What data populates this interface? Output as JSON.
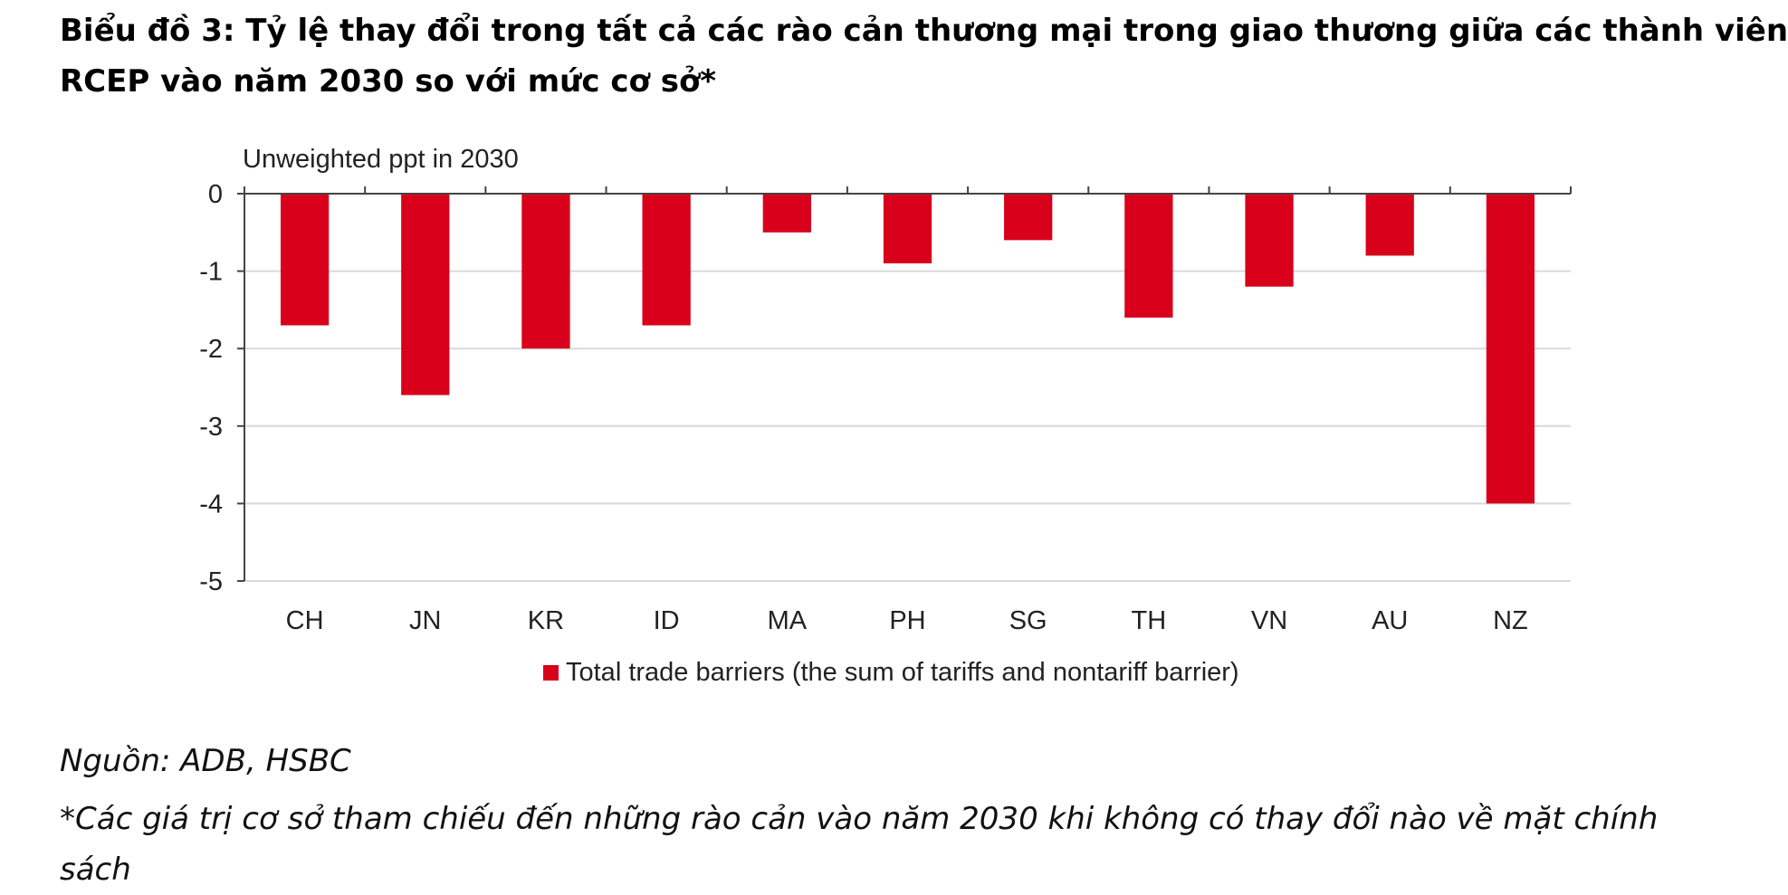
{
  "title_lines": [
    "Biểu đồ 3: Tỷ lệ thay đổi trong tất cả các rào cản thương mại trong giao thương giữa các thành viên",
    "RCEP vào năm 2030 so với mức cơ sở*"
  ],
  "source": "Nguồn: ADB, HSBC",
  "footnote_lines": [
    "*Các giá trị cơ sở tham chiếu đến những rào cản vào năm 2030 khi không có thay đổi nào về mặt chính",
    "sách"
  ],
  "colors": {
    "bar": "#d9001b",
    "grid": "#d9d9d9",
    "axis": "#444444"
  },
  "chart_data": {
    "type": "bar",
    "ylabel": "Unweighted ppt in 2030",
    "xlabel": "",
    "ylim": [
      -5,
      0
    ],
    "yticks": [
      0,
      -1,
      -2,
      -3,
      -4,
      -5
    ],
    "grid": true,
    "legend_position": "bottom",
    "categories": [
      "CH",
      "JN",
      "KR",
      "ID",
      "MA",
      "PH",
      "SG",
      "TH",
      "VN",
      "AU",
      "NZ"
    ],
    "series": [
      {
        "name": "Total trade barriers (the sum of tariffs and nontariff barrier)",
        "values": [
          -1.7,
          -2.6,
          -2.0,
          -1.7,
          -0.5,
          -0.9,
          -0.6,
          -1.6,
          -1.2,
          -0.8,
          -4.0
        ]
      }
    ]
  }
}
